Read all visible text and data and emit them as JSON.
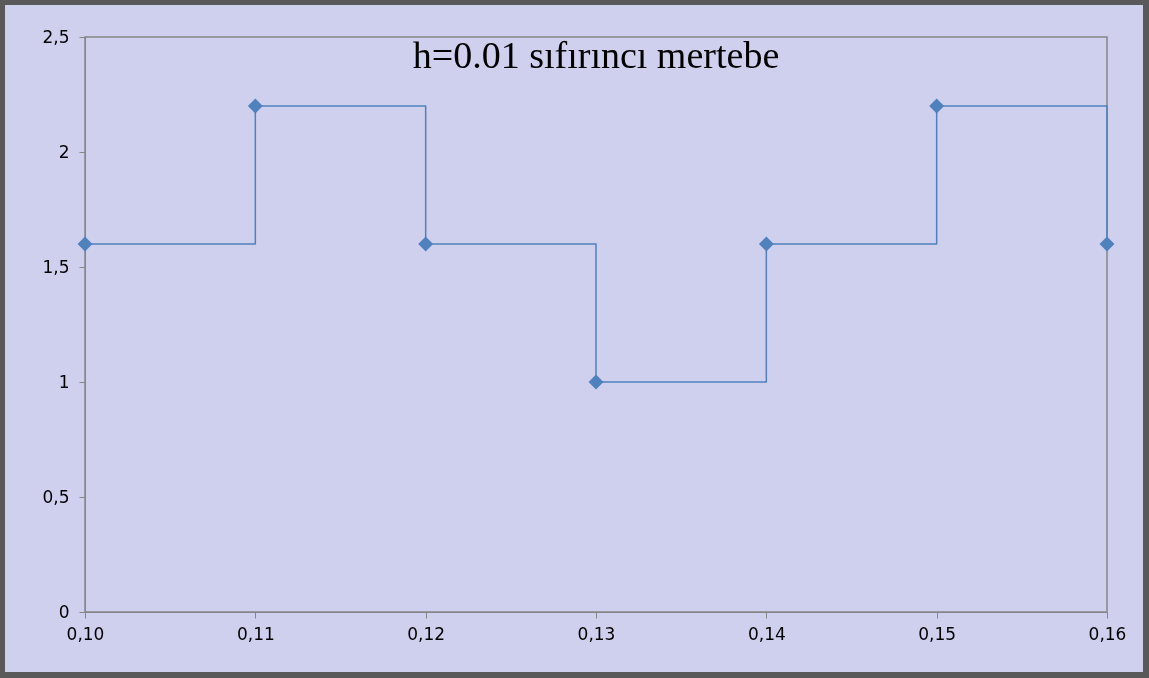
{
  "chart_data": {
    "type": "step",
    "title": "h=0.01  sıfırıncı mertebe",
    "x": [
      0.1,
      0.11,
      0.12,
      0.13,
      0.14,
      0.15,
      0.16
    ],
    "series": [
      {
        "color": "#4f81bd",
        "values": [
          1.6,
          2.2,
          1.6,
          1.0,
          1.6,
          2.2,
          1.6
        ]
      }
    ],
    "xlim": [
      0.1,
      0.16
    ],
    "xticks": [
      {
        "value": 0.1,
        "label": "0,10"
      },
      {
        "value": 0.11,
        "label": "0,11"
      },
      {
        "value": 0.12,
        "label": "0,12"
      },
      {
        "value": 0.13,
        "label": "0,13"
      },
      {
        "value": 0.14,
        "label": "0,14"
      },
      {
        "value": 0.15,
        "label": "0,15"
      },
      {
        "value": 0.16,
        "label": "0,16"
      }
    ],
    "ylim": [
      0,
      2.5
    ],
    "yticks": [
      {
        "value": 0,
        "label": "0"
      },
      {
        "value": 0.5,
        "label": "0,5"
      },
      {
        "value": 1,
        "label": "1"
      },
      {
        "value": 1.5,
        "label": "1,5"
      },
      {
        "value": 2,
        "label": "2"
      },
      {
        "value": 2.5,
        "label": "2,5"
      }
    ],
    "grid": false,
    "marker": "diamond",
    "line_style": "solid"
  }
}
